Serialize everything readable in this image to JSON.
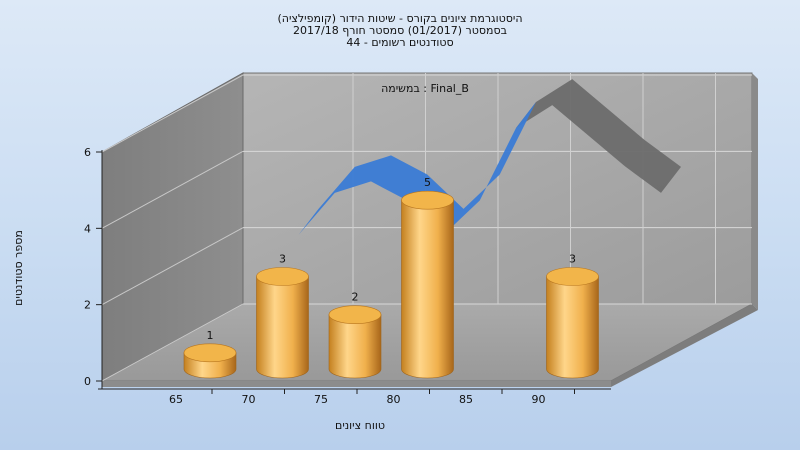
{
  "titles": [
    "היסטוגרמת ציונים בקורס - שיטות הידור (קומפילציה)",
    "בסמסטר  (01/2017)  סמסטר חורף 2017/18",
    "סטודנטים רשומים - 44"
  ],
  "inner_title": "במשימה : Final_B",
  "chart_data": {
    "type": "bar",
    "title": "היסטוגרמת ציונים בקורס - שיטות הידור (קומפילציה)",
    "xlabel": "טווח ציונים",
    "ylabel": "מספר סטודנטים",
    "x_ticks": [
      "65",
      "70",
      "75",
      "80",
      "85",
      "90"
    ],
    "y_ticks": [
      "0",
      "2",
      "4",
      "6"
    ],
    "ylim": [
      0,
      6
    ],
    "grid": true,
    "bars": [
      {
        "x": 65,
        "label": "1",
        "value": 1
      },
      {
        "x": 70,
        "label": "3",
        "value": 3
      },
      {
        "x": 75,
        "label": "2",
        "value": 2
      },
      {
        "x": 80,
        "label": "5",
        "value": 5
      },
      {
        "x": 90,
        "label": "3",
        "value": 3
      }
    ],
    "curve": {
      "type": "area-ribbon",
      "points": [
        [
          70,
          3.2
        ],
        [
          72.5,
          4.3
        ],
        [
          75,
          4.6
        ],
        [
          77.5,
          4.1
        ],
        [
          80,
          3.2
        ],
        [
          82.5,
          4.1
        ],
        [
          85,
          6.0
        ],
        [
          87.5,
          6.6
        ],
        [
          90,
          5.8
        ],
        [
          92.5,
          5.0
        ],
        [
          95,
          4.3
        ]
      ],
      "colors": {
        "front": "#3a7bd5",
        "back": "#6b6b6b"
      }
    },
    "colors": {
      "bar_light": "#ffd68a",
      "bar_dark": "#c4801f",
      "bar_top": "#f2b54a",
      "wall": "#9a9a9a",
      "floor": "#a6a6a6"
    }
  }
}
